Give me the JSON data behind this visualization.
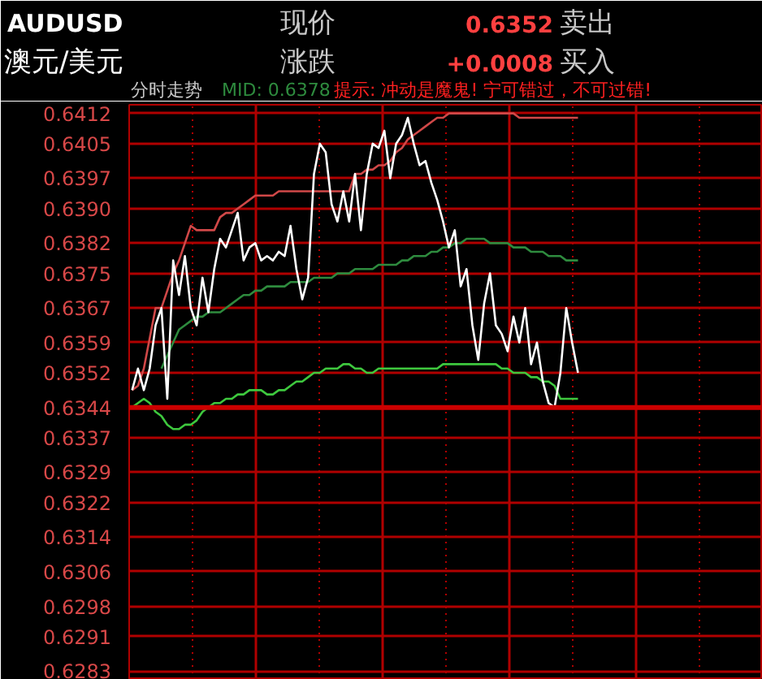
{
  "chart_data": {
    "type": "line",
    "title": "AUDUSD",
    "subtitle": "澳元/美元",
    "annotations": [
      "现价",
      "0.6352",
      "卖出",
      "涨跌",
      "+0.0008",
      "买入",
      "分时走势",
      "MID: 0.6378",
      "提示: 冲动是魔鬼! 宁可错过，不可过错!"
    ],
    "categories": [
      null,
      null,
      null,
      null,
      null,
      null,
      null,
      null,
      null,
      null,
      null,
      null,
      null,
      null,
      null,
      null,
      null,
      null,
      null,
      null,
      null,
      null,
      null,
      null,
      null,
      null,
      null,
      null,
      null,
      null,
      null,
      null,
      null,
      null,
      null,
      null,
      null,
      null,
      null,
      null,
      null,
      null,
      null,
      null,
      null,
      null,
      null,
      null,
      null,
      null,
      null,
      null,
      null,
      null,
      null,
      null,
      null,
      null,
      null,
      null,
      null,
      null,
      null,
      null,
      null,
      null,
      null,
      null,
      null,
      null,
      null,
      null,
      null,
      null,
      null,
      null,
      null,
      null,
      null,
      null,
      null,
      null,
      null,
      null,
      null,
      null,
      null,
      null,
      null,
      null,
      null,
      null,
      null,
      null,
      null,
      null,
      null,
      null,
      null,
      null,
      null,
      null,
      null,
      null,
      null,
      null,
      null,
      null
    ],
    "series": [
      {
        "color": "#d04848",
        "values": [
          0.6348,
          0.6349,
          0.6353,
          0.636,
          0.6367,
          0.6367,
          0.6371,
          0.6375,
          0.6378,
          0.6382,
          0.6386,
          0.6385,
          0.6385,
          0.6385,
          0.6385,
          0.6388,
          0.6389,
          0.6389,
          0.639,
          0.6391,
          0.6392,
          0.6393,
          0.6393,
          0.6393,
          0.6393,
          0.6394,
          0.6394,
          0.6394,
          0.6394,
          0.6394,
          0.6394,
          0.6394,
          0.6394,
          0.6394,
          0.6394,
          0.6394,
          0.6394,
          0.6394,
          0.6398,
          0.6398,
          0.6399,
          0.6399,
          0.64,
          0.64,
          0.6401,
          0.6403,
          0.6404,
          0.6406,
          0.6407,
          0.6408,
          0.6409,
          0.641,
          0.6411,
          0.6411,
          0.6412,
          0.6412,
          0.6412,
          0.6412,
          0.6412,
          0.6412,
          0.6412,
          0.6412,
          0.6412,
          0.6412,
          0.6412,
          0.6412,
          0.6411,
          0.6411,
          0.6411,
          0.6411,
          0.6411,
          0.6411,
          0.6411,
          0.6411,
          0.6411,
          0.6411,
          0.6411,
          null,
          null,
          null,
          null,
          null,
          null,
          null,
          null,
          null,
          null,
          null,
          null,
          null,
          null,
          null,
          null,
          null,
          null,
          null,
          null,
          null,
          null,
          null,
          null,
          null,
          null,
          null,
          null,
          null,
          null,
          null
        ]
      },
      {
        "color": "#2e8b3e",
        "values": [
          null,
          null,
          null,
          null,
          null,
          0.6353,
          0.6356,
          0.6359,
          0.6362,
          0.6363,
          0.6364,
          0.6365,
          0.6365,
          0.6366,
          0.6366,
          0.6366,
          0.6367,
          0.6368,
          0.6369,
          0.637,
          0.637,
          0.6371,
          0.6371,
          0.6372,
          0.6372,
          0.6372,
          0.6372,
          0.6373,
          0.6373,
          0.6373,
          0.6373,
          0.6374,
          0.6374,
          0.6374,
          0.6374,
          0.6375,
          0.6375,
          0.6375,
          0.6376,
          0.6376,
          0.6376,
          0.6376,
          0.6377,
          0.6377,
          0.6377,
          0.6377,
          0.6378,
          0.6378,
          0.6379,
          0.6379,
          0.6379,
          0.638,
          0.638,
          0.6381,
          0.6381,
          0.6382,
          0.6382,
          0.6383,
          0.6383,
          0.6383,
          0.6383,
          0.6382,
          0.6382,
          0.6382,
          0.6382,
          0.6381,
          0.6381,
          0.6381,
          0.638,
          0.638,
          0.638,
          0.6379,
          0.6379,
          0.6379,
          0.6378,
          0.6378,
          0.6378,
          null,
          null,
          null,
          null,
          null,
          null,
          null,
          null,
          null,
          null,
          null,
          null,
          null,
          null,
          null,
          null,
          null,
          null,
          null,
          null,
          null,
          null,
          null,
          null,
          null,
          null,
          null,
          null,
          null,
          null,
          null
        ]
      },
      {
        "color": "#3ec83e",
        "values": [
          0.6344,
          0.6345,
          0.6346,
          0.6345,
          0.6343,
          0.6342,
          0.634,
          0.6339,
          0.6339,
          0.634,
          0.634,
          0.6341,
          0.6343,
          0.6344,
          0.6345,
          0.6345,
          0.6346,
          0.6346,
          0.6347,
          0.6347,
          0.6348,
          0.6348,
          0.6348,
          0.6347,
          0.6347,
          0.6348,
          0.6348,
          0.6349,
          0.635,
          0.635,
          0.6351,
          0.6352,
          0.6352,
          0.6353,
          0.6353,
          0.6353,
          0.6354,
          0.6354,
          0.6353,
          0.6353,
          0.6352,
          0.6352,
          0.6353,
          0.6353,
          0.6353,
          0.6353,
          0.6353,
          0.6353,
          0.6353,
          0.6353,
          0.6353,
          0.6353,
          0.6353,
          0.6354,
          0.6354,
          0.6354,
          0.6354,
          0.6354,
          0.6354,
          0.6354,
          0.6354,
          0.6354,
          0.6354,
          0.6353,
          0.6353,
          0.6352,
          0.6352,
          0.6352,
          0.6351,
          0.6351,
          0.635,
          0.635,
          0.6349,
          0.6346,
          0.6346,
          0.6346,
          0.6346,
          null,
          null,
          null,
          null,
          null,
          null,
          null,
          null,
          null,
          null,
          null,
          null,
          null,
          null,
          null,
          null,
          null,
          null,
          null,
          null,
          null,
          null,
          null,
          null,
          null,
          null,
          null,
          null,
          null,
          null,
          null
        ]
      },
      {
        "color": "#ffffff",
        "values": [
          0.6348,
          0.6353,
          0.6348,
          0.6353,
          0.6363,
          0.6367,
          0.6346,
          0.6378,
          0.637,
          0.6379,
          0.6367,
          0.6363,
          0.6374,
          0.6366,
          0.6376,
          0.6383,
          0.6381,
          0.6385,
          0.6389,
          0.6378,
          0.6381,
          0.6382,
          0.6378,
          0.6379,
          0.6378,
          0.638,
          0.6379,
          0.6386,
          0.6376,
          0.6369,
          0.6374,
          0.6398,
          0.6405,
          0.6403,
          0.6391,
          0.6387,
          0.6394,
          0.6387,
          0.6398,
          0.6385,
          0.6398,
          0.6405,
          0.6404,
          0.6408,
          0.6397,
          0.6405,
          0.6407,
          0.6411,
          0.6405,
          0.64,
          0.6401,
          0.6396,
          0.6392,
          0.6387,
          0.6381,
          0.6385,
          0.6372,
          0.6376,
          0.6363,
          0.6355,
          0.6368,
          0.6375,
          0.6363,
          0.6361,
          0.6357,
          0.6365,
          0.6359,
          0.6367,
          0.6354,
          0.6359,
          0.635,
          0.6345,
          0.6344,
          0.6352,
          0.6367,
          0.6359,
          0.6352,
          null,
          null,
          null,
          null,
          null,
          null,
          null,
          null,
          null,
          null,
          null,
          null,
          null,
          null,
          null,
          null,
          null,
          null,
          null,
          null,
          null,
          null,
          null,
          null,
          null,
          null,
          null,
          null,
          null,
          null,
          null
        ]
      }
    ],
    "ylim": [
      0.6281,
      0.6414
    ],
    "yticks": [
      0.6412,
      0.6405,
      0.6397,
      {
        "value": 0.639,
        "label": "0.6390"
      },
      0.6382,
      0.6375,
      0.6367,
      0.6359,
      0.6352,
      0.6344,
      0.6337,
      0.6329,
      0.6322,
      0.6314,
      0.6306,
      0.6298,
      0.6291,
      0.6283
    ],
    "ref_lines": [
      {
        "axis": "y",
        "value": 0.6344,
        "color": "#cc0000"
      }
    ],
    "grid": true,
    "tick_labels": "y",
    "line_style": "solid"
  }
}
